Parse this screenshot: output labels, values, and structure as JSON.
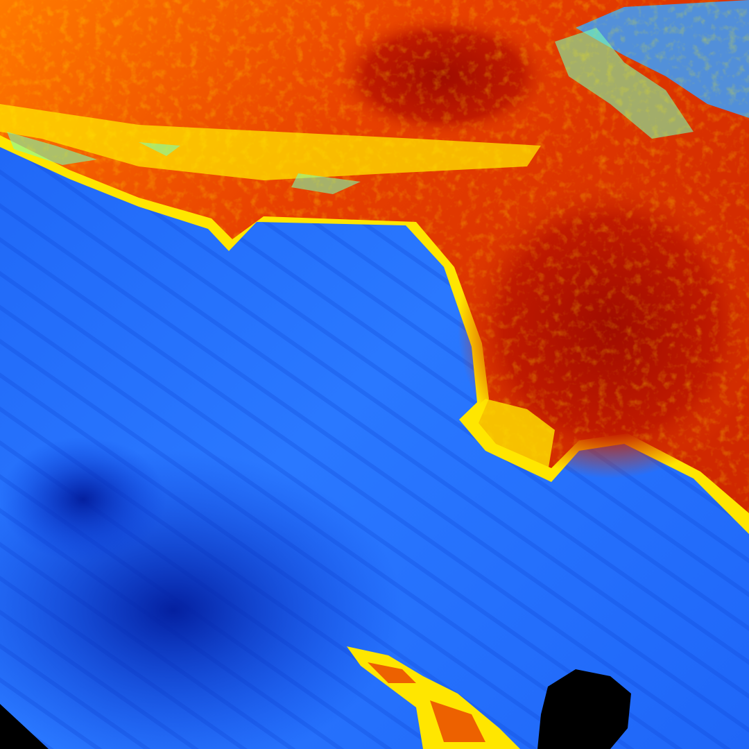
{
  "palette": {
    "ocean_light": "#2a78ff",
    "ocean_mid": "#1a5cf0",
    "ocean_deep": "#0a2fc8",
    "land_hot": "#b01000",
    "land_warm": "#e83a00",
    "land_mild": "#ff8c00",
    "land_cool": "#ffe600",
    "land_cold": "#7cffb0",
    "no_data": "#000000"
  }
}
